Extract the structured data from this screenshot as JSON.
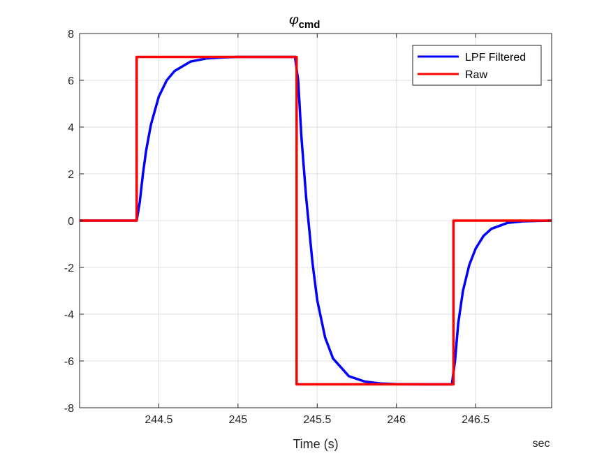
{
  "chart_data": {
    "type": "line",
    "title_symbol": "φ",
    "title_subscript": "cmd",
    "xlabel": "Time (s)",
    "x_unit_label": "sec",
    "ylabel": "",
    "xlim": [
      244.0,
      246.98
    ],
    "ylim": [
      -8,
      8
    ],
    "xticks": [
      244.5,
      245,
      245.5,
      246,
      246.5
    ],
    "xtick_labels": [
      "244.5",
      "245",
      "245.5",
      "246",
      "246.5"
    ],
    "yticks": [
      -8,
      -6,
      -4,
      -2,
      0,
      2,
      4,
      6,
      8
    ],
    "ytick_labels": [
      "-8",
      "-6",
      "-4",
      "-2",
      "0",
      "2",
      "4",
      "6",
      "8"
    ],
    "grid": true,
    "legend_position": "top-right",
    "series": [
      {
        "name": "LPF Filtered",
        "color": "#0000ff",
        "x": [
          244.0,
          244.36,
          244.38,
          244.4,
          244.42,
          244.45,
          244.5,
          244.55,
          244.6,
          244.7,
          244.8,
          244.9,
          245.0,
          245.2,
          245.36,
          245.38,
          245.4,
          245.43,
          245.47,
          245.5,
          245.55,
          245.6,
          245.7,
          245.8,
          245.9,
          246.0,
          246.2,
          246.35,
          246.37,
          246.39,
          246.42,
          246.46,
          246.5,
          246.55,
          246.6,
          246.7,
          246.8,
          246.98
        ],
        "values": [
          0,
          0,
          0.8,
          2.0,
          3.0,
          4.1,
          5.3,
          6.0,
          6.4,
          6.8,
          6.93,
          6.98,
          7.0,
          7.0,
          7.0,
          6.0,
          3.6,
          1.0,
          -1.8,
          -3.4,
          -5.0,
          -5.9,
          -6.65,
          -6.88,
          -6.96,
          -6.99,
          -7.0,
          -7.0,
          -6.0,
          -4.4,
          -3.0,
          -1.9,
          -1.2,
          -0.65,
          -0.35,
          -0.1,
          -0.03,
          0
        ]
      },
      {
        "name": "Raw",
        "color": "#ff0000",
        "x": [
          244.0,
          244.36,
          244.36,
          245.37,
          245.37,
          246.36,
          246.36,
          246.98
        ],
        "values": [
          0,
          0,
          7,
          7,
          -7,
          -7,
          0,
          0
        ]
      }
    ]
  },
  "colors": {
    "axis": "#262626",
    "grid": "#dfdfdf",
    "background": "#ffffff"
  }
}
